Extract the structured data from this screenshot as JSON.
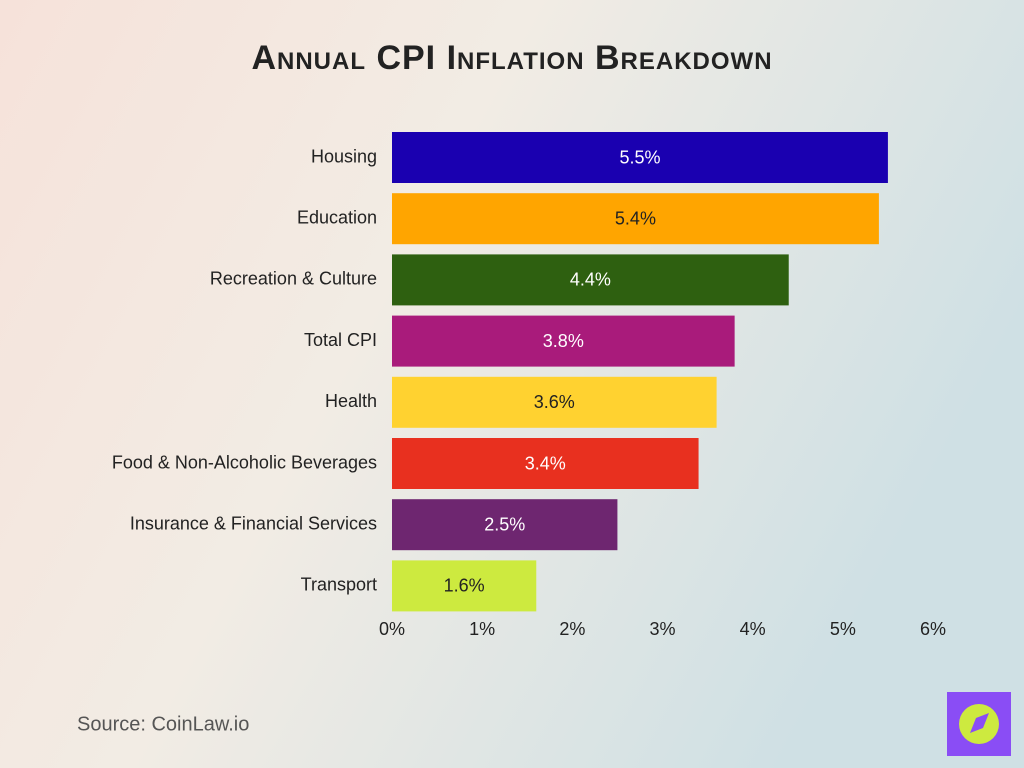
{
  "chart_data": {
    "type": "hbar",
    "title": "Annual CPI Inflation Breakdown",
    "categories": [
      "Housing",
      "Education",
      "Recreation & Culture",
      "Total CPI",
      "Health",
      "Food & Non-Alcoholic Beverages",
      "Insurance & Financial Services",
      "Transport"
    ],
    "values": [
      5.5,
      5.4,
      4.4,
      3.8,
      3.6,
      3.4,
      2.5,
      1.6
    ],
    "value_labels": [
      "5.5%",
      "5.4%",
      "4.4%",
      "3.8%",
      "3.6%",
      "3.4%",
      "2.5%",
      "1.6%"
    ],
    "colors": [
      "#1a00b0",
      "#ffa500",
      "#2e6010",
      "#a91b7b",
      "#ffd230",
      "#e8301f",
      "#6e2670",
      "#cdea3f"
    ],
    "xlim": [
      0,
      6
    ],
    "xticks": [
      {
        "value": 0,
        "label": "0%"
      },
      {
        "value": 1,
        "label": "1%"
      },
      {
        "value": 2,
        "label": "2%"
      },
      {
        "value": 3,
        "label": "3%"
      },
      {
        "value": 4,
        "label": "4%"
      },
      {
        "value": 5,
        "label": "5%"
      },
      {
        "value": 6,
        "label": "6%"
      }
    ],
    "source": "Source: CoinLaw.io"
  }
}
